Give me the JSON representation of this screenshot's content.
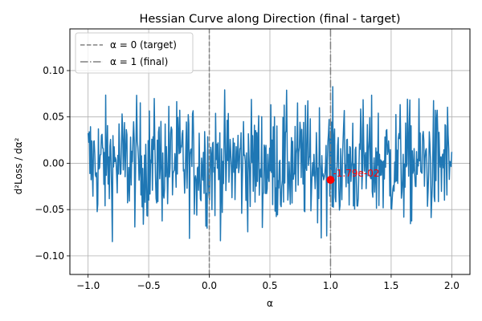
{
  "chart_data": {
    "type": "line",
    "title": "Hessian Curve along Direction (final - target)",
    "xlabel": "α",
    "ylabel": "d²Loss / dα²",
    "xlim": [
      -1.15,
      2.15
    ],
    "ylim": [
      -0.12,
      0.145
    ],
    "xticks": [
      -1.0,
      -0.5,
      0.0,
      0.5,
      1.0,
      1.5,
      2.0
    ],
    "xtick_labels": [
      "−1.0",
      "−0.5",
      "0.0",
      "0.5",
      "1.0",
      "1.5",
      "2.0"
    ],
    "yticks": [
      -0.1,
      -0.05,
      0.0,
      0.05,
      0.1
    ],
    "ytick_labels": [
      "−0.10",
      "−0.05",
      "0.00",
      "0.05",
      "0.10"
    ],
    "grid": true,
    "legend_position": "upper-left",
    "series": [
      {
        "color": "#1f77b4",
        "x_start": -1.0,
        "x_end": 2.0,
        "num_points": 600,
        "description_visible": "dense noisy oscillation roughly within [-0.106, 0.10] around 0",
        "y_min": -0.106,
        "y_max": 0.1
      }
    ],
    "vlines": [
      {
        "x": 0.0,
        "style": "dashed",
        "color": "#808080",
        "label": "α = 0 (target)"
      },
      {
        "x": 1.0,
        "style": "dashdot",
        "color": "#808080",
        "label": "α = 1 (final)"
      }
    ],
    "marker": {
      "x": 1.0,
      "y": -0.0179,
      "color": "#ff0000",
      "label": "-1.79e-02"
    }
  }
}
